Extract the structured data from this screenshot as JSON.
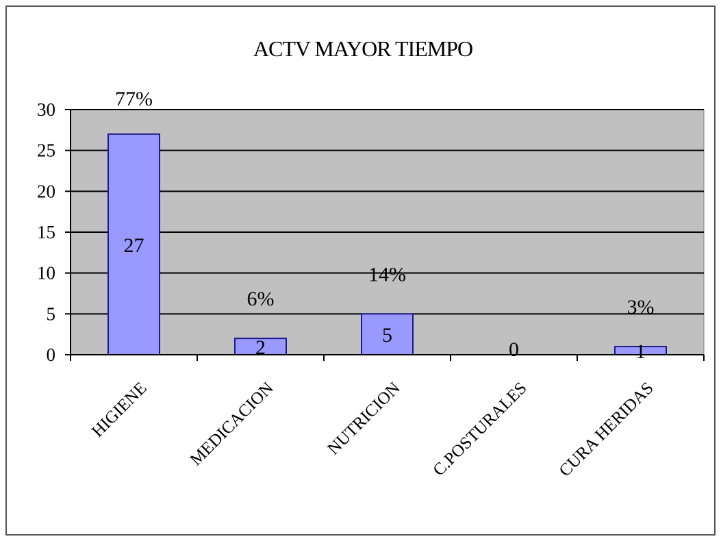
{
  "chart_data": {
    "type": "bar",
    "title": "ACTV MAYOR TIEMPO",
    "categories": [
      "HIGIENE",
      "MEDICACION",
      "NUTRICION",
      "C.POSTURALES",
      "CURA HERIDAS"
    ],
    "values": [
      27,
      2,
      5,
      0,
      1
    ],
    "percent_labels": [
      "77%",
      "6%",
      "14%",
      "",
      "3%"
    ],
    "ylim": [
      0,
      30
    ],
    "yticks": [
      "0",
      "5",
      "10",
      "15",
      "20",
      "25",
      "30"
    ],
    "grid": true,
    "legend": "none",
    "colors": {
      "bar_fill": "#9999ff",
      "bar_stroke": "#1a1a8c",
      "plot_background": "#c0c0c0",
      "gridline": "#000000"
    }
  }
}
